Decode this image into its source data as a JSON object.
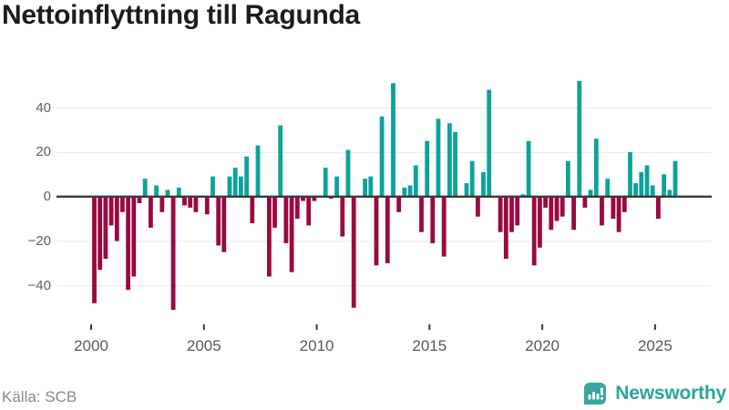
{
  "title": "Nettoinflyttning till Ragunda",
  "footer": {
    "source": "Källa: SCB",
    "brand": "Newsworthy"
  },
  "chart_data": {
    "type": "bar",
    "title": "Nettoinflyttning till Ragunda",
    "frequency": "quarterly",
    "start_year": 2000,
    "values": [
      -48,
      -33,
      -28,
      -13,
      -20,
      -7,
      -42,
      -36,
      -3,
      8,
      -14,
      5,
      -7,
      3,
      -51,
      4,
      -4,
      -5,
      -7,
      0,
      -8,
      9,
      -22,
      -25,
      9,
      13,
      9,
      18,
      -12,
      23,
      0,
      -36,
      -14,
      32,
      -21,
      -34,
      -10,
      -2,
      -13,
      -2,
      0,
      13,
      -1,
      9,
      -18,
      21,
      -50,
      0,
      8,
      9,
      -31,
      36,
      -30,
      51,
      -7,
      4,
      5,
      14,
      -16,
      25,
      -21,
      35,
      -27,
      33,
      29,
      0,
      6,
      16,
      -9,
      11,
      48,
      0,
      -16,
      -28,
      -16,
      -13,
      1,
      25,
      -31,
      -23,
      -5,
      -15,
      -11,
      -9,
      16,
      -15,
      52,
      -5,
      3,
      26,
      -13,
      8,
      -10,
      -16,
      -7,
      20,
      6,
      11,
      14,
      5,
      -10,
      10,
      3,
      16
    ],
    "x_tick_years": [
      2000,
      2005,
      2010,
      2015,
      2020,
      2025
    ],
    "y_ticks": [
      40,
      20,
      0,
      -20,
      -40
    ],
    "y_tick_labels": [
      "40",
      "20",
      "0",
      "−20",
      "−40"
    ],
    "ylim": [
      -55,
      55
    ],
    "grid": "horizontal",
    "zero_line": true,
    "legend": "none",
    "colors": {
      "positive": "#0da29b",
      "negative": "#9a0941",
      "zero_line": "#3a3a40",
      "gridline": "#e9e9e9",
      "title": "#1c1c1c",
      "axis_text": "#616161",
      "source_text": "#8a8a8a",
      "brand_teal": "#2ba59d",
      "brand_icon": "#3ca59e"
    }
  }
}
